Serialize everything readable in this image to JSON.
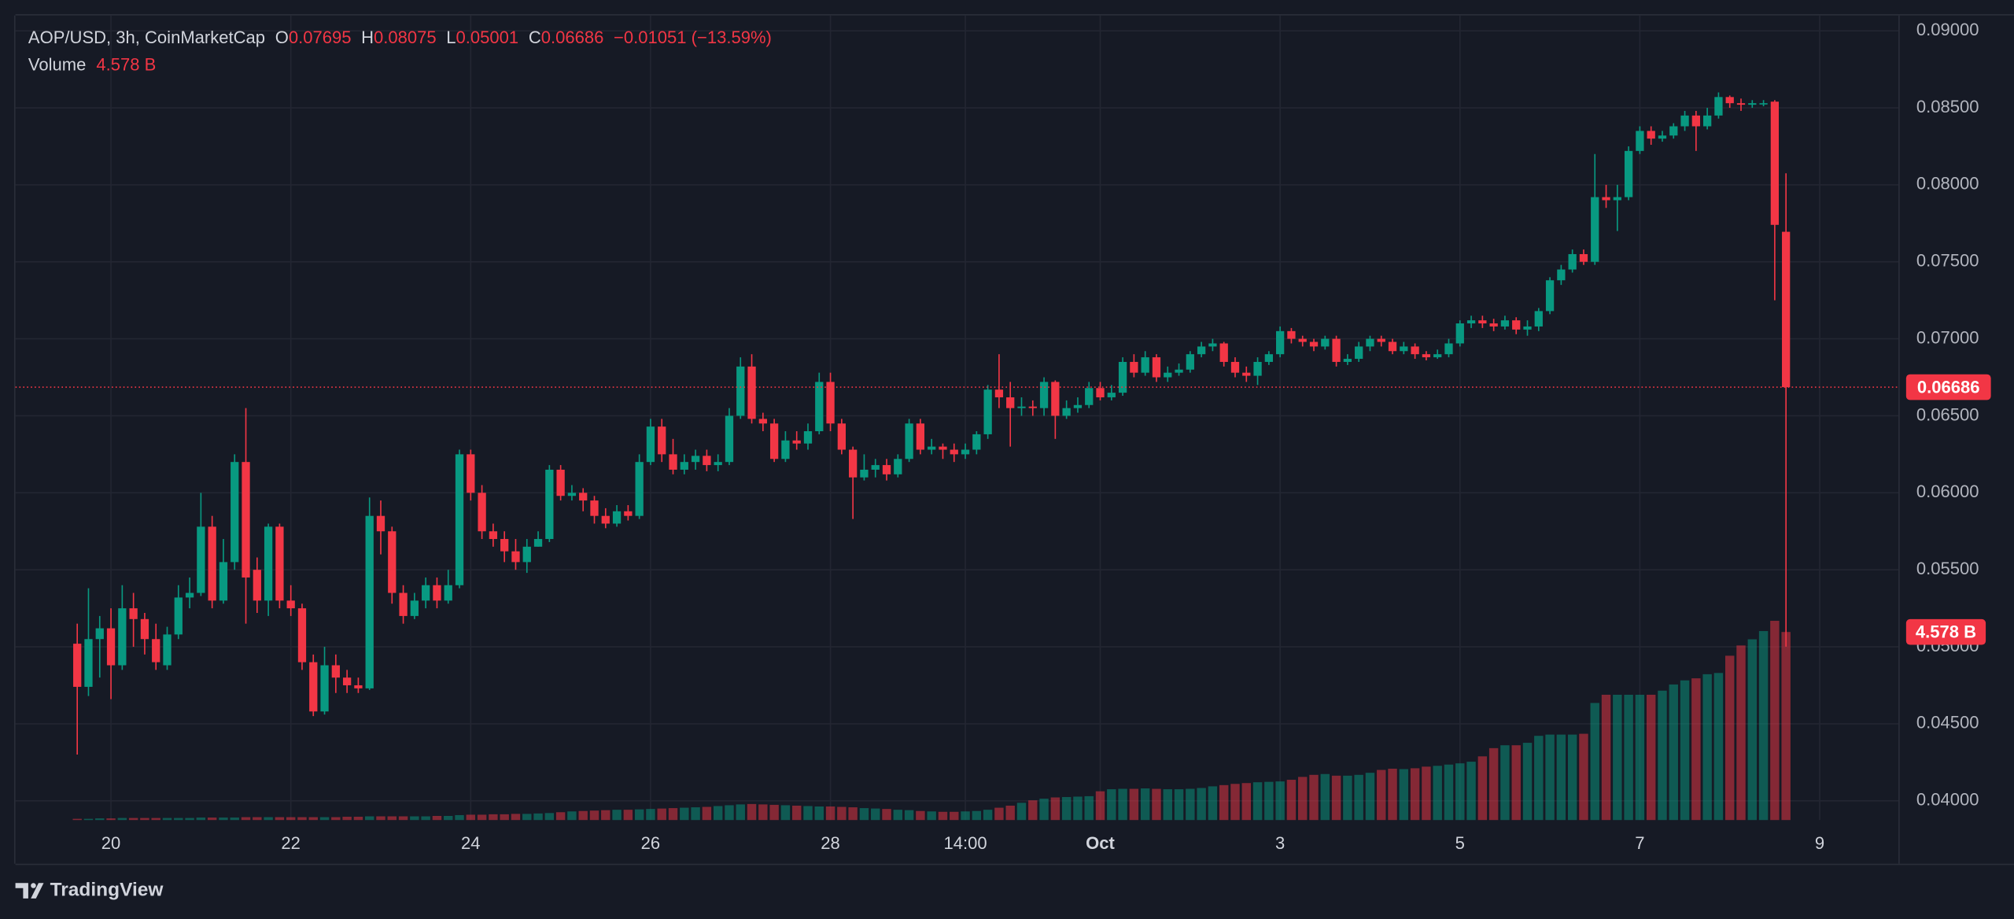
{
  "chart_data": {
    "type": "candlestick",
    "header": {
      "symbol": "AOP/USD, 3h, CoinMarketCap",
      "o": "O",
      "h": "H",
      "l": "L",
      "c": "C",
      "change": "−0.01051",
      "change_pct": "(−13.59%)",
      "volume_title": "Volume"
    },
    "volume_label": "4.578 B",
    "brand": "TradingView",
    "colors": {
      "up": "#089981",
      "down": "#f23645",
      "up_volume": "rgba(8,153,129,0.5)",
      "down_volume": "rgba(242,54,69,0.5)"
    },
    "xlim": [
      -5.5,
      162
    ],
    "xticks": [
      {
        "value": 3,
        "label": "20"
      },
      {
        "value": 19,
        "label": "22"
      },
      {
        "value": 35,
        "label": "24"
      },
      {
        "value": 51,
        "label": "26"
      },
      {
        "value": 67,
        "label": "28"
      },
      {
        "value": 79,
        "label": "14:00"
      },
      {
        "value": 91,
        "label": "Oct"
      },
      {
        "value": 107,
        "label": "3"
      },
      {
        "value": 123,
        "label": "5"
      },
      {
        "value": 139,
        "label": "7"
      },
      {
        "value": 155,
        "label": "9"
      }
    ],
    "ylim": [
      0.03875,
      0.091
    ],
    "yticks": [
      {
        "value": 0.04,
        "label": "0.04000"
      },
      {
        "value": 0.045,
        "label": "0.04500"
      },
      {
        "value": 0.05,
        "label": "0.05000"
      },
      {
        "value": 0.055,
        "label": "0.05500"
      },
      {
        "value": 0.06,
        "label": "0.06000"
      },
      {
        "value": 0.065,
        "label": "0.06500"
      },
      {
        "value": 0.07,
        "label": "0.07000"
      },
      {
        "value": 0.075,
        "label": "0.07500"
      },
      {
        "value": 0.08,
        "label": "0.08000"
      },
      {
        "value": 0.085,
        "label": "0.08500"
      },
      {
        "value": 0.09,
        "label": "0.09000"
      }
    ],
    "grid": true,
    "open": [
      0.0502,
      0.0474,
      0.0505,
      0.0512,
      0.0488,
      0.0525,
      0.0518,
      0.0505,
      0.0488,
      0.0508,
      0.0532,
      0.0535,
      0.0578,
      0.053,
      0.0555,
      0.062,
      0.055,
      0.053,
      0.0578,
      0.053,
      0.0525,
      0.049,
      0.0458,
      0.0488,
      0.048,
      0.0475,
      0.0473,
      0.0585,
      0.0575,
      0.0535,
      0.052,
      0.053,
      0.054,
      0.053,
      0.054,
      0.0625,
      0.06,
      0.0575,
      0.057,
      0.0562,
      0.0555,
      0.0565,
      0.057,
      0.0615,
      0.0598,
      0.06,
      0.0595,
      0.0585,
      0.058,
      0.0588,
      0.0585,
      0.062,
      0.0643,
      0.0625,
      0.0615,
      0.062,
      0.0624,
      0.0618,
      0.062,
      0.065,
      0.0682,
      0.0648,
      0.0645,
      0.0622,
      0.0634,
      0.0632,
      0.064,
      0.0672,
      0.0645,
      0.0628,
      0.061,
      0.0615,
      0.0618,
      0.0612,
      0.0622,
      0.0645,
      0.0628,
      0.063,
      0.0628,
      0.0625,
      0.0628,
      0.0638,
      0.0667,
      0.0662,
      0.0655,
      0.0656,
      0.0655,
      0.0672,
      0.065,
      0.0655,
      0.0657,
      0.0668,
      0.0662,
      0.0665,
      0.0685,
      0.0678,
      0.0688,
      0.0675,
      0.0678,
      0.068,
      0.069,
      0.0695,
      0.0697,
      0.0685,
      0.0678,
      0.0676,
      0.0685,
      0.069,
      0.0705,
      0.07,
      0.0698,
      0.0695,
      0.07,
      0.0685,
      0.0687,
      0.0695,
      0.07,
      0.0698,
      0.0692,
      0.0695,
      0.069,
      0.0688,
      0.069,
      0.0697,
      0.071,
      0.0712,
      0.071,
      0.0708,
      0.0712,
      0.0706,
      0.0708,
      0.0718,
      0.0738,
      0.0745,
      0.0755,
      0.075,
      0.0792,
      0.079,
      0.0792,
      0.0822,
      0.0835,
      0.083,
      0.0832,
      0.0838,
      0.0845,
      0.0838,
      0.0845,
      0.0857,
      0.0853,
      0.0852,
      0.0853,
      0.0854,
      0.07695
    ],
    "high": [
      0.0515,
      0.0538,
      0.052,
      0.0525,
      0.054,
      0.0535,
      0.0522,
      0.0515,
      0.0513,
      0.054,
      0.0545,
      0.06,
      0.0585,
      0.057,
      0.0625,
      0.0655,
      0.0558,
      0.058,
      0.058,
      0.054,
      0.0528,
      0.0495,
      0.05,
      0.0495,
      0.0485,
      0.048,
      0.0597,
      0.0595,
      0.0578,
      0.054,
      0.0535,
      0.0545,
      0.0545,
      0.055,
      0.0628,
      0.0628,
      0.0605,
      0.058,
      0.0575,
      0.057,
      0.057,
      0.0575,
      0.0618,
      0.0618,
      0.0605,
      0.0603,
      0.0598,
      0.059,
      0.0592,
      0.0592,
      0.0625,
      0.0648,
      0.0648,
      0.0635,
      0.0625,
      0.0628,
      0.0628,
      0.0625,
      0.0655,
      0.0688,
      0.069,
      0.0652,
      0.0648,
      0.064,
      0.064,
      0.0645,
      0.0678,
      0.0678,
      0.0648,
      0.063,
      0.0625,
      0.0622,
      0.0622,
      0.0625,
      0.0648,
      0.0648,
      0.0635,
      0.0632,
      0.0632,
      0.0632,
      0.064,
      0.067,
      0.069,
      0.0672,
      0.0662,
      0.066,
      0.0675,
      0.0673,
      0.066,
      0.0662,
      0.0672,
      0.0672,
      0.067,
      0.0688,
      0.069,
      0.0692,
      0.069,
      0.0682,
      0.0684,
      0.0692,
      0.0698,
      0.07,
      0.0698,
      0.0688,
      0.0682,
      0.0688,
      0.0692,
      0.0708,
      0.0707,
      0.0702,
      0.07,
      0.0702,
      0.0702,
      0.069,
      0.0698,
      0.0702,
      0.0702,
      0.07,
      0.0698,
      0.0697,
      0.0692,
      0.0693,
      0.07,
      0.0712,
      0.0715,
      0.0715,
      0.0713,
      0.0715,
      0.0714,
      0.0712,
      0.072,
      0.074,
      0.0748,
      0.0758,
      0.0758,
      0.082,
      0.08,
      0.08,
      0.0825,
      0.0838,
      0.0838,
      0.0835,
      0.084,
      0.0848,
      0.0848,
      0.085,
      0.086,
      0.0858,
      0.0856,
      0.0855,
      0.0855,
      0.0855,
      0.08075
    ],
    "low": [
      0.043,
      0.0468,
      0.048,
      0.0466,
      0.0485,
      0.05,
      0.0495,
      0.0485,
      0.0485,
      0.0505,
      0.0525,
      0.0533,
      0.0525,
      0.0528,
      0.055,
      0.0515,
      0.0522,
      0.052,
      0.0525,
      0.052,
      0.0485,
      0.0455,
      0.0456,
      0.047,
      0.047,
      0.047,
      0.0472,
      0.056,
      0.0528,
      0.0515,
      0.0518,
      0.0525,
      0.0525,
      0.0528,
      0.0538,
      0.0595,
      0.057,
      0.0565,
      0.0555,
      0.055,
      0.0548,
      0.0565,
      0.0568,
      0.0595,
      0.0595,
      0.0588,
      0.058,
      0.0577,
      0.0578,
      0.0582,
      0.0583,
      0.0618,
      0.062,
      0.0612,
      0.0612,
      0.0615,
      0.0614,
      0.0614,
      0.0618,
      0.0648,
      0.0645,
      0.064,
      0.062,
      0.062,
      0.0628,
      0.0628,
      0.0638,
      0.064,
      0.0625,
      0.0583,
      0.0608,
      0.061,
      0.0608,
      0.061,
      0.062,
      0.0625,
      0.0625,
      0.0622,
      0.062,
      0.0622,
      0.0625,
      0.0635,
      0.0655,
      0.063,
      0.065,
      0.065,
      0.065,
      0.0635,
      0.0648,
      0.0652,
      0.0655,
      0.066,
      0.066,
      0.0663,
      0.0675,
      0.0676,
      0.0672,
      0.0672,
      0.0676,
      0.0678,
      0.0688,
      0.0692,
      0.0682,
      0.0675,
      0.0672,
      0.067,
      0.0683,
      0.0688,
      0.0697,
      0.0695,
      0.0692,
      0.0693,
      0.0682,
      0.0683,
      0.0685,
      0.0692,
      0.0695,
      0.069,
      0.069,
      0.0687,
      0.0686,
      0.0687,
      0.0688,
      0.0695,
      0.0707,
      0.0707,
      0.0705,
      0.0706,
      0.0703,
      0.0702,
      0.0705,
      0.0716,
      0.0735,
      0.0743,
      0.0748,
      0.0748,
      0.0785,
      0.077,
      0.079,
      0.082,
      0.0826,
      0.0828,
      0.083,
      0.0835,
      0.0822,
      0.0836,
      0.0843,
      0.085,
      0.0848,
      0.085,
      0.0851,
      0.0725,
      0.05001
    ],
    "close": [
      0.0474,
      0.0505,
      0.0512,
      0.0488,
      0.0525,
      0.0518,
      0.0505,
      0.049,
      0.0508,
      0.0532,
      0.0535,
      0.0578,
      0.053,
      0.0555,
      0.062,
      0.0545,
      0.053,
      0.0578,
      0.053,
      0.0525,
      0.049,
      0.0458,
      0.0488,
      0.048,
      0.0475,
      0.0473,
      0.0585,
      0.0575,
      0.0535,
      0.052,
      0.053,
      0.054,
      0.053,
      0.054,
      0.0625,
      0.06,
      0.0575,
      0.057,
      0.0562,
      0.0555,
      0.0565,
      0.057,
      0.0615,
      0.0598,
      0.06,
      0.0595,
      0.0585,
      0.058,
      0.0588,
      0.0585,
      0.062,
      0.0643,
      0.0625,
      0.0615,
      0.062,
      0.0624,
      0.0618,
      0.062,
      0.065,
      0.0682,
      0.0648,
      0.0645,
      0.0622,
      0.0634,
      0.0632,
      0.064,
      0.0672,
      0.0645,
      0.0628,
      0.061,
      0.0615,
      0.0618,
      0.0612,
      0.0622,
      0.0645,
      0.0628,
      0.063,
      0.0628,
      0.0625,
      0.0628,
      0.0638,
      0.0667,
      0.0662,
      0.0655,
      0.0656,
      0.0655,
      0.0672,
      0.065,
      0.0655,
      0.0657,
      0.0668,
      0.0662,
      0.0665,
      0.0685,
      0.0678,
      0.0688,
      0.0675,
      0.0678,
      0.068,
      0.069,
      0.0695,
      0.0697,
      0.0685,
      0.0678,
      0.0676,
      0.0685,
      0.069,
      0.0705,
      0.07,
      0.0698,
      0.0695,
      0.07,
      0.0685,
      0.0687,
      0.0695,
      0.07,
      0.0698,
      0.0692,
      0.0695,
      0.069,
      0.0688,
      0.069,
      0.0697,
      0.071,
      0.0712,
      0.071,
      0.0708,
      0.0712,
      0.0706,
      0.0708,
      0.0718,
      0.0738,
      0.0745,
      0.0755,
      0.075,
      0.0792,
      0.079,
      0.0792,
      0.0822,
      0.0835,
      0.083,
      0.0832,
      0.0838,
      0.0845,
      0.0838,
      0.0845,
      0.0857,
      0.0853,
      0.0852,
      0.0853,
      0.0853,
      0.0774,
      0.06686
    ],
    "volume": [
      0.03,
      0.03,
      0.04,
      0.04,
      0.05,
      0.05,
      0.05,
      0.05,
      0.05,
      0.05,
      0.05,
      0.06,
      0.06,
      0.06,
      0.06,
      0.07,
      0.07,
      0.07,
      0.07,
      0.07,
      0.07,
      0.07,
      0.07,
      0.07,
      0.08,
      0.08,
      0.09,
      0.09,
      0.09,
      0.09,
      0.09,
      0.09,
      0.1,
      0.1,
      0.12,
      0.13,
      0.13,
      0.14,
      0.14,
      0.15,
      0.15,
      0.16,
      0.17,
      0.19,
      0.21,
      0.22,
      0.23,
      0.24,
      0.25,
      0.25,
      0.26,
      0.27,
      0.28,
      0.29,
      0.3,
      0.31,
      0.32,
      0.34,
      0.36,
      0.38,
      0.39,
      0.38,
      0.37,
      0.36,
      0.35,
      0.34,
      0.33,
      0.33,
      0.32,
      0.31,
      0.29,
      0.28,
      0.27,
      0.25,
      0.24,
      0.22,
      0.21,
      0.2,
      0.2,
      0.21,
      0.22,
      0.25,
      0.3,
      0.35,
      0.42,
      0.48,
      0.52,
      0.55,
      0.56,
      0.57,
      0.58,
      0.7,
      0.75,
      0.76,
      0.76,
      0.77,
      0.76,
      0.75,
      0.75,
      0.76,
      0.78,
      0.82,
      0.85,
      0.88,
      0.9,
      0.92,
      0.93,
      0.94,
      0.98,
      1.05,
      1.1,
      1.12,
      1.08,
      1.08,
      1.1,
      1.15,
      1.22,
      1.25,
      1.24,
      1.26,
      1.3,
      1.32,
      1.35,
      1.38,
      1.42,
      1.55,
      1.75,
      1.82,
      1.82,
      1.88,
      2.05,
      2.08,
      2.08,
      2.08,
      2.1,
      2.85,
      3.05,
      3.05,
      3.05,
      3.05,
      3.05,
      3.15,
      3.3,
      3.4,
      3.45,
      3.55,
      3.58,
      4.0,
      4.25,
      4.4,
      4.6,
      4.85,
      4.578
    ]
  }
}
